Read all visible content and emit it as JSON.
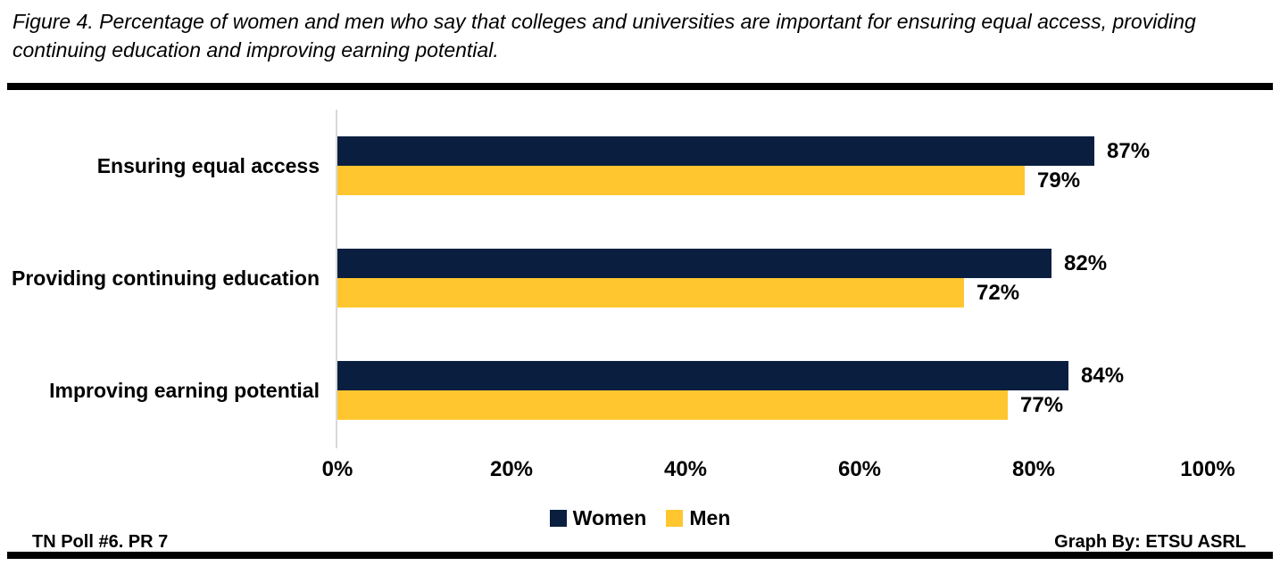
{
  "chart_data": {
    "type": "bar",
    "orientation": "horizontal",
    "title": "Figure 4. Percentage of women and men who say that colleges and universities are important for ensuring equal access, providing continuing education and improving earning potential.",
    "categories": [
      "Ensuring equal access",
      "Providing continuing education",
      "Improving earning potential"
    ],
    "series": [
      {
        "name": "Women",
        "color": "#0A1F3F",
        "values": [
          87,
          82,
          84
        ],
        "data_labels": [
          "87%",
          "82%",
          "84%"
        ]
      },
      {
        "name": "Men",
        "color": "#FFC62F",
        "values": [
          79,
          72,
          77
        ],
        "data_labels": [
          "79%",
          "72%",
          "77%"
        ]
      }
    ],
    "xlabel": "",
    "ylabel": "",
    "xlim": [
      0,
      100
    ],
    "x_ticks": [
      "0%",
      "20%",
      "40%",
      "60%",
      "80%",
      "100%"
    ],
    "grid": false,
    "legend_position": "bottom"
  },
  "footer": {
    "left": "TN Poll #6. PR 7",
    "right": "Graph By: ETSU ASRL"
  },
  "colors": {
    "women_navy": "#0A1F3F",
    "men_gold": "#FFC62F",
    "axis_line": "#D9D9D9",
    "rule_black": "#000000",
    "text": "#000000"
  }
}
